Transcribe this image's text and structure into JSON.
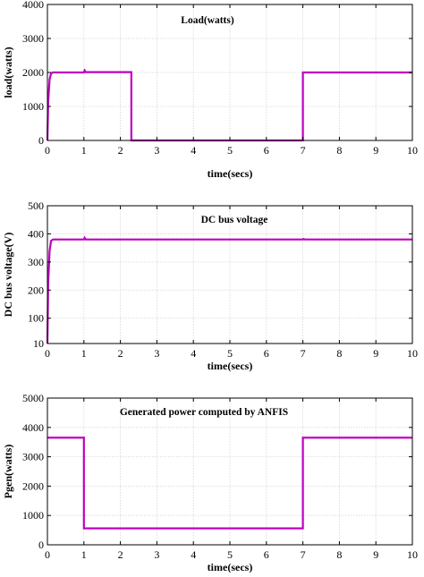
{
  "chart_data": [
    {
      "type": "line",
      "annotation": "Load(watts)",
      "xlabel": "time(secs)",
      "ylabel": "load(watts)",
      "xlim": [
        0,
        10
      ],
      "ylim": [
        0,
        4000
      ],
      "xticks": [
        "0",
        "1",
        "2",
        "3",
        "4",
        "5",
        "6",
        "7",
        "8",
        "9",
        "10"
      ],
      "yticks": [
        "0",
        "1000",
        "2000",
        "3000",
        "4000"
      ],
      "grid": true,
      "color": "#c000c0",
      "series": [
        {
          "x": [
            0,
            0.02,
            0.06,
            0.1,
            0.15,
            1.0,
            1.02,
            1.05,
            2.3,
            2.3,
            7.0,
            7.0,
            10
          ],
          "y": [
            0,
            1100,
            1800,
            1970,
            2000,
            2000,
            2060,
            2010,
            2010,
            0,
            0,
            2000,
            2000
          ]
        }
      ]
    },
    {
      "type": "line",
      "annotation": "DC bus voltage",
      "xlabel": "time(secs)",
      "ylabel": "DC bus voltage(V)",
      "xlim": [
        0,
        10
      ],
      "ylim": [
        10,
        500
      ],
      "xticks": [
        "0",
        "1",
        "2",
        "3",
        "4",
        "5",
        "6",
        "7",
        "8",
        "9",
        "10"
      ],
      "ytick_values": [
        10,
        100,
        200,
        300,
        400,
        500
      ],
      "yticks": [
        "10",
        "100",
        "200",
        "300",
        "400",
        "500"
      ],
      "grid": true,
      "color": "#c000c0",
      "series": [
        {
          "x": [
            0,
            0.02,
            0.06,
            0.1,
            0.15,
            1.0,
            1.02,
            1.05,
            7.0,
            7.02,
            7.05,
            10
          ],
          "y": [
            10,
            220,
            340,
            375,
            380,
            380,
            386,
            380,
            380,
            382,
            380,
            380
          ]
        }
      ]
    },
    {
      "type": "line",
      "annotation": "Generated power computed by ANFIS",
      "xlabel": "time(secs)",
      "ylabel": "Pgen(watts)",
      "xlim": [
        0,
        10
      ],
      "ylim": [
        0,
        5000
      ],
      "xticks": [
        "0",
        "1",
        "2",
        "3",
        "4",
        "5",
        "6",
        "7",
        "8",
        "9",
        "10"
      ],
      "yticks": [
        "0",
        "1000",
        "2000",
        "3000",
        "4000",
        "5000"
      ],
      "grid": true,
      "color": "#c000c0",
      "series": [
        {
          "x": [
            0,
            1.0,
            1.0,
            7.0,
            7.0,
            10
          ],
          "y": [
            3650,
            3650,
            560,
            560,
            3650,
            3650
          ]
        }
      ]
    }
  ]
}
